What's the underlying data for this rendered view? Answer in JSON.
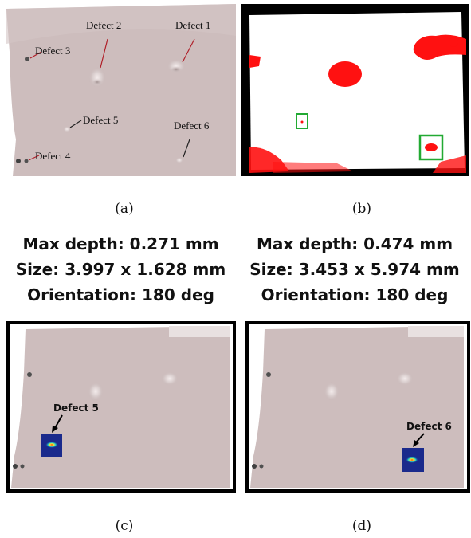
{
  "panel_a": {
    "caption": "(a)",
    "labels": {
      "d1": "Defect 1",
      "d2": "Defect 2",
      "d3": "Defect 3",
      "d4": "Defect 4",
      "d5": "Defect 5",
      "d6": "Defect 6"
    }
  },
  "panel_b": {
    "caption": "(b)"
  },
  "panel_c": {
    "caption": "(c)",
    "max_depth": "Max depth: 0.271 mm",
    "size": "Size: 3.997 x 1.628 mm",
    "orientation": "Orientation: 180 deg",
    "defect_label": "Defect 5"
  },
  "panel_d": {
    "caption": "(d)",
    "max_depth": "Max depth: 0.474 mm",
    "size": "Size: 3.453 x 5.974 mm",
    "orientation": "Orientation: 180 deg",
    "defect_label": "Defect 6"
  },
  "colors": {
    "plate": "#c8b8b8",
    "mask_red": "#ff1111",
    "box_green": "#22aa33",
    "heat_blue": "#1a2a8c"
  }
}
